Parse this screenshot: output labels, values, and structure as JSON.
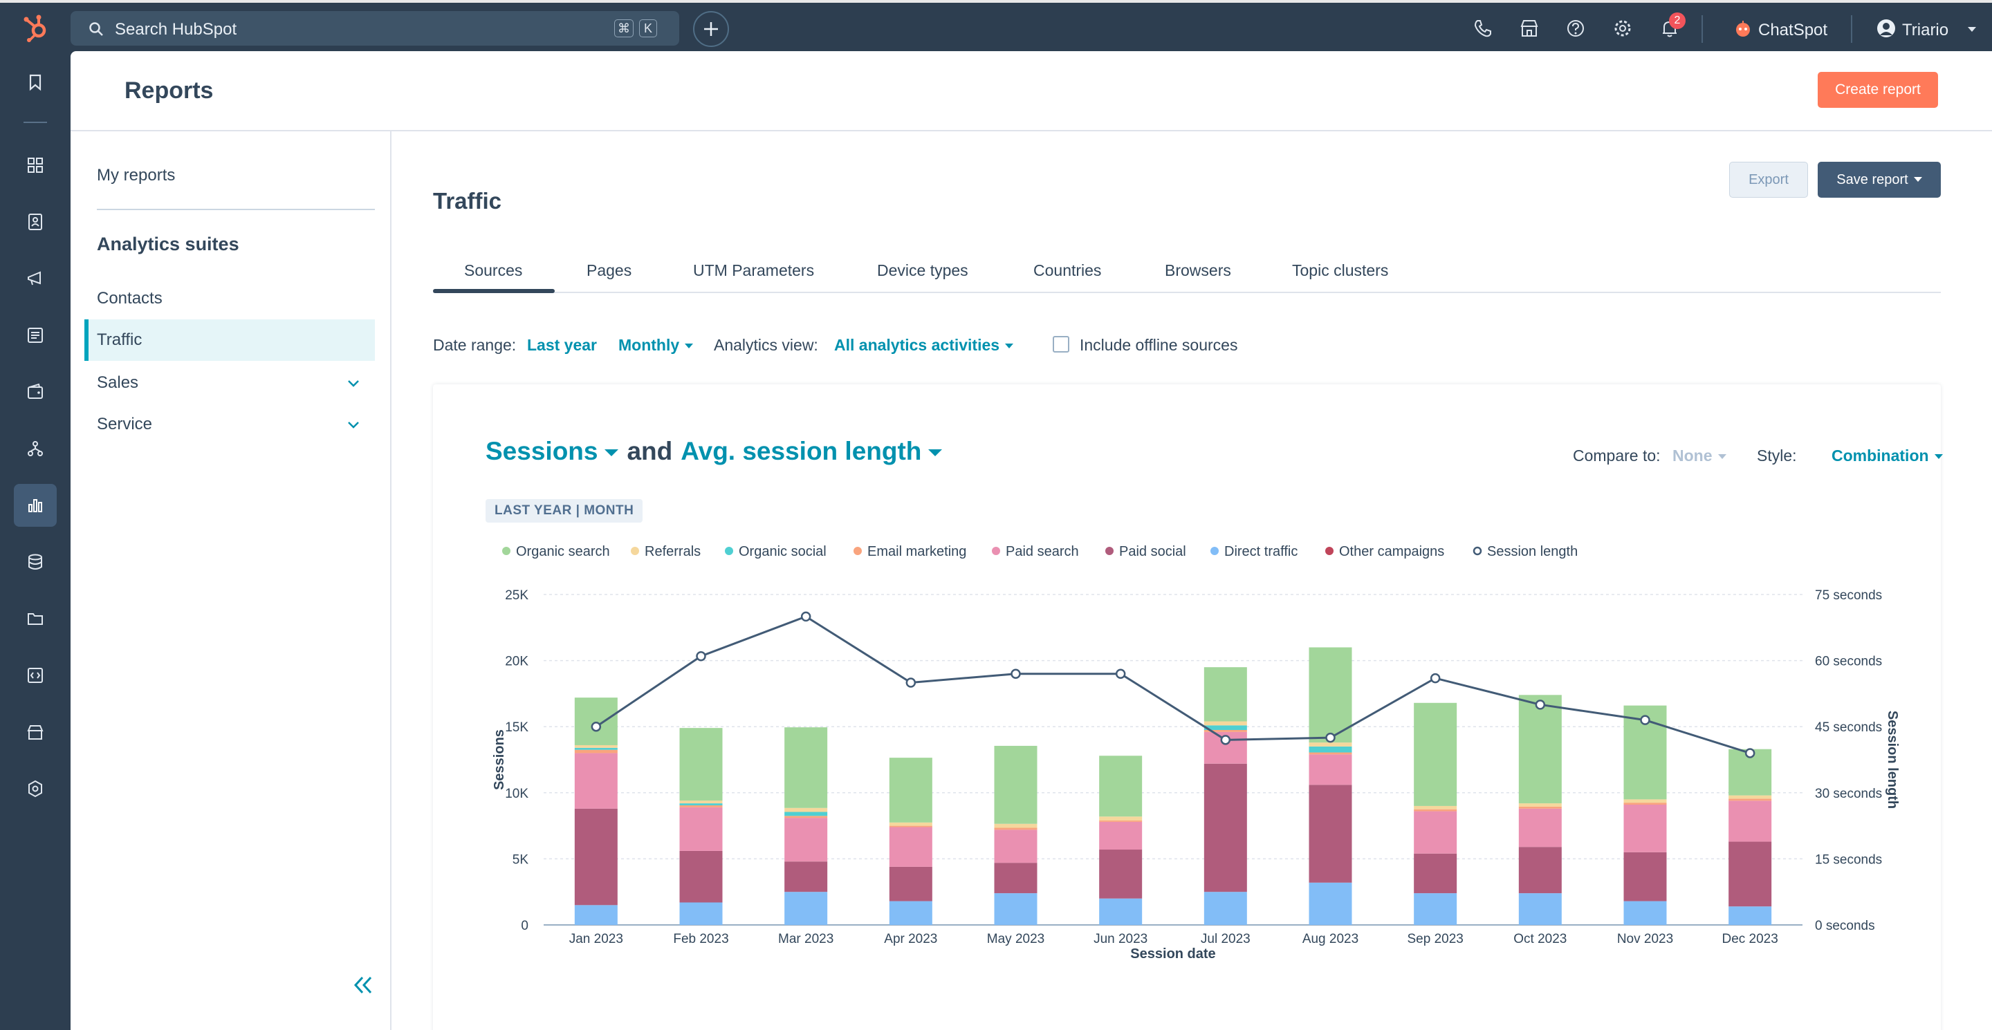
{
  "topbar": {
    "search_placeholder": "Search HubSpot",
    "kbd_cmd": "⌘",
    "kbd_k": "K",
    "notification_count": "2",
    "chatspot_label": "ChatSpot",
    "user_name": "Triario"
  },
  "header": {
    "title": "Reports",
    "create_button": "Create report"
  },
  "sidebar": {
    "my_reports": "My reports",
    "suites_title": "Analytics suites",
    "items": [
      {
        "label": "Contacts"
      },
      {
        "label": "Traffic"
      },
      {
        "label": "Sales"
      },
      {
        "label": "Service"
      }
    ]
  },
  "content": {
    "title": "Traffic",
    "export_button": "Export",
    "save_button": "Save report",
    "tabs": [
      "Sources",
      "Pages",
      "UTM Parameters",
      "Device types",
      "Countries",
      "Browsers",
      "Topic clusters"
    ],
    "filters": {
      "date_range_label": "Date range:",
      "date_range_value": "Last year",
      "frequency_value": "Monthly",
      "analytics_view_label": "Analytics view:",
      "analytics_view_value": "All analytics activities",
      "offline_label": "Include offline sources"
    }
  },
  "report": {
    "metric_primary": "Sessions",
    "connector": "and",
    "metric_secondary": "Avg. session length",
    "compare_label": "Compare to:",
    "compare_value": "None",
    "style_label": "Style:",
    "style_value": "Combination",
    "range_tag": "LAST YEAR | MONTH"
  },
  "colors": {
    "accent": "#0091ae",
    "cta": "#ff7a59",
    "nav": "#2d3e50",
    "line": "#425b76"
  },
  "chart_data": {
    "type": "bar",
    "stacked": true,
    "combined_with": "line",
    "categories": [
      "Jan 2023",
      "Feb 2023",
      "Mar 2023",
      "Apr 2023",
      "May 2023",
      "Jun 2023",
      "Jul 2023",
      "Aug 2023",
      "Sep 2023",
      "Oct 2023",
      "Nov 2023",
      "Dec 2023"
    ],
    "xlabel": "Session date",
    "ylabel": "Sessions",
    "y2label": "Session length",
    "ylim": [
      0,
      25000
    ],
    "y2lim": [
      0,
      75
    ],
    "yticks": [
      "0",
      "5K",
      "10K",
      "15K",
      "20K",
      "25K"
    ],
    "y2ticks": [
      "0 seconds",
      "15 seconds",
      "30 seconds",
      "45 seconds",
      "60 seconds",
      "75 seconds"
    ],
    "series": [
      {
        "name": "Direct traffic",
        "color": "#82bdf7",
        "values": [
          1500,
          1700,
          2500,
          1800,
          2400,
          2000,
          2500,
          3200,
          2400,
          2400,
          1800,
          1400
        ]
      },
      {
        "name": "Other campaigns",
        "color": "#c0455a",
        "values": [
          0,
          0,
          0,
          0,
          0,
          0,
          0,
          0,
          0,
          0,
          0,
          0
        ]
      },
      {
        "name": "Paid social",
        "color": "#b05c7c",
        "values": [
          7300,
          3900,
          2300,
          2600,
          2300,
          3700,
          9700,
          7400,
          3000,
          3500,
          3700,
          4900
        ]
      },
      {
        "name": "Paid search",
        "color": "#ea90b1",
        "values": [
          4200,
          3300,
          3300,
          3000,
          2500,
          2100,
          2400,
          2300,
          3200,
          2900,
          3600,
          3100
        ]
      },
      {
        "name": "Email marketing",
        "color": "#f9a47e",
        "values": [
          250,
          150,
          150,
          100,
          150,
          100,
          150,
          150,
          150,
          150,
          150,
          150
        ]
      },
      {
        "name": "Organic social",
        "color": "#4fcfd2",
        "values": [
          150,
          150,
          300,
          0,
          0,
          0,
          350,
          450,
          0,
          0,
          0,
          0
        ]
      },
      {
        "name": "Referrals",
        "color": "#f5d79c",
        "values": [
          200,
          200,
          300,
          250,
          300,
          300,
          300,
          300,
          250,
          250,
          250,
          250
        ]
      },
      {
        "name": "Organic search",
        "color": "#a2d69a",
        "values": [
          3600,
          5500,
          6100,
          4900,
          5900,
          4600,
          4100,
          7200,
          7800,
          8200,
          7100,
          3500
        ]
      }
    ],
    "line_series": {
      "name": "Session length",
      "color": "#425b76",
      "values": [
        45,
        61,
        70,
        55,
        57,
        57,
        42,
        42.5,
        56,
        50,
        46.5,
        39
      ]
    },
    "legend": [
      "Organic search",
      "Referrals",
      "Organic social",
      "Email marketing",
      "Paid search",
      "Paid social",
      "Direct traffic",
      "Other campaigns",
      "Session length"
    ]
  }
}
